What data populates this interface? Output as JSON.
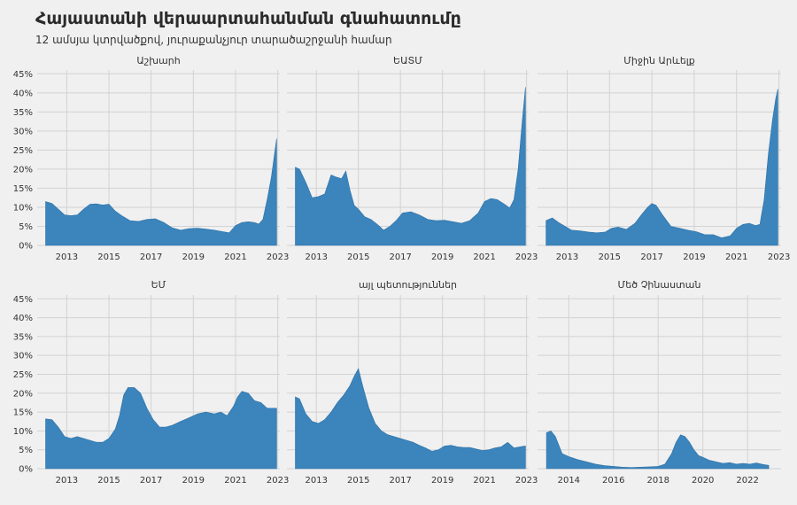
{
  "title": "Հայաստանի վերաարտահանման գնահատումը",
  "subtitle": "12 ամսյա կտրվածքով, յուրաքանչյուր տարածաշրջանի համար",
  "chart_data": {
    "type": "area",
    "y_tick_labels": [
      "0%",
      "5%",
      "10%",
      "15%",
      "20%",
      "25%",
      "30%",
      "35%",
      "40%",
      "45%"
    ],
    "ylim": [
      0,
      46
    ],
    "colors": {
      "area": "#3b84bc",
      "background": "#f0f0f0",
      "grid": "#d2d2d2"
    },
    "panels": [
      {
        "name": "Աշխարհ",
        "xlim": [
          2011.6,
          2023.1
        ],
        "x_ticks": [
          2013,
          2015,
          2017,
          2019,
          2021,
          2023
        ],
        "x": [
          2012.0,
          2012.3,
          2012.6,
          2012.9,
          2013.2,
          2013.5,
          2013.8,
          2014.1,
          2014.4,
          2014.7,
          2015.0,
          2015.3,
          2015.6,
          2016.0,
          2016.4,
          2016.8,
          2017.2,
          2017.6,
          2018.0,
          2018.4,
          2018.8,
          2019.2,
          2019.6,
          2020.0,
          2020.4,
          2020.7,
          2021.0,
          2021.3,
          2021.6,
          2021.9,
          2022.1,
          2022.3,
          2022.5,
          2022.7,
          2022.85,
          2022.95
        ],
        "y": [
          11.5,
          11.0,
          9.5,
          8.0,
          7.8,
          8.0,
          9.5,
          10.8,
          10.9,
          10.6,
          10.8,
          9.0,
          7.8,
          6.5,
          6.3,
          6.8,
          7.0,
          6.0,
          4.6,
          4.0,
          4.4,
          4.5,
          4.3,
          4.0,
          3.6,
          3.3,
          5.2,
          6.0,
          6.2,
          6.0,
          5.6,
          6.8,
          12.0,
          18.0,
          24.0,
          28.0
        ]
      },
      {
        "name": "ԵԱՏՄ",
        "xlim": [
          2011.6,
          2023.1
        ],
        "x_ticks": [
          2013,
          2015,
          2017,
          2019,
          2021,
          2023
        ],
        "x": [
          2012.0,
          2012.2,
          2012.5,
          2012.8,
          2013.1,
          2013.4,
          2013.7,
          2013.9,
          2014.2,
          2014.4,
          2014.6,
          2014.8,
          2015.0,
          2015.3,
          2015.6,
          2015.9,
          2016.2,
          2016.5,
          2016.8,
          2017.1,
          2017.5,
          2017.9,
          2018.3,
          2018.7,
          2019.1,
          2019.5,
          2019.9,
          2020.3,
          2020.7,
          2021.0,
          2021.3,
          2021.6,
          2021.9,
          2022.2,
          2022.4,
          2022.6,
          2022.8,
          2022.95
        ],
        "y": [
          20.5,
          20.0,
          16.5,
          12.5,
          12.8,
          13.5,
          18.5,
          18.0,
          17.5,
          19.5,
          14.5,
          10.5,
          9.5,
          7.5,
          6.8,
          5.5,
          4.0,
          5.0,
          6.5,
          8.5,
          8.8,
          8.0,
          6.8,
          6.5,
          6.6,
          6.2,
          5.8,
          6.5,
          8.5,
          11.5,
          12.3,
          12.0,
          11.0,
          9.8,
          12.0,
          20.0,
          33.0,
          41.5
        ]
      },
      {
        "name": "Միջին Արևելք",
        "xlim": [
          2011.6,
          2023.1
        ],
        "x_ticks": [
          2013,
          2015,
          2017,
          2019,
          2021,
          2023
        ],
        "x": [
          2012.0,
          2012.3,
          2012.6,
          2012.9,
          2013.2,
          2013.6,
          2014.0,
          2014.4,
          2014.8,
          2015.1,
          2015.4,
          2015.8,
          2016.2,
          2016.5,
          2016.8,
          2017.0,
          2017.2,
          2017.5,
          2017.9,
          2018.3,
          2018.7,
          2019.1,
          2019.5,
          2019.9,
          2020.3,
          2020.7,
          2021.0,
          2021.3,
          2021.6,
          2021.9,
          2022.1,
          2022.3,
          2022.5,
          2022.7,
          2022.85,
          2022.95
        ],
        "y": [
          6.5,
          7.2,
          6.0,
          5.0,
          4.0,
          3.8,
          3.5,
          3.3,
          3.5,
          4.5,
          4.8,
          4.2,
          5.8,
          8.0,
          10.0,
          11.0,
          10.5,
          8.0,
          5.0,
          4.5,
          4.0,
          3.6,
          2.8,
          2.8,
          2.0,
          2.5,
          4.5,
          5.5,
          5.8,
          5.2,
          5.5,
          12.0,
          24.0,
          33.0,
          38.5,
          41.0
        ]
      },
      {
        "name": "ԵՄ",
        "xlim": [
          2011.6,
          2023.1
        ],
        "x_ticks": [
          2013,
          2015,
          2017,
          2019,
          2021,
          2023
        ],
        "x": [
          2012.0,
          2012.3,
          2012.6,
          2012.9,
          2013.2,
          2013.5,
          2013.8,
          2014.1,
          2014.4,
          2014.7,
          2015.0,
          2015.3,
          2015.5,
          2015.7,
          2015.9,
          2016.2,
          2016.5,
          2016.8,
          2017.1,
          2017.4,
          2017.7,
          2018.0,
          2018.4,
          2018.8,
          2019.2,
          2019.6,
          2020.0,
          2020.3,
          2020.6,
          2020.9,
          2021.1,
          2021.3,
          2021.6,
          2021.9,
          2022.2,
          2022.5,
          2022.8,
          2022.95
        ],
        "y": [
          13.2,
          13.0,
          11.0,
          8.5,
          8.0,
          8.5,
          8.0,
          7.5,
          7.0,
          7.0,
          8.0,
          10.5,
          14.0,
          19.5,
          21.5,
          21.5,
          20.0,
          16.0,
          13.0,
          11.0,
          11.0,
          11.5,
          12.5,
          13.5,
          14.5,
          15.0,
          14.5,
          15.0,
          14.0,
          16.5,
          19.0,
          20.5,
          20.0,
          18.0,
          17.5,
          16.0,
          16.0,
          16.0
        ]
      },
      {
        "name": "այլ պետություններ",
        "xlim": [
          2011.6,
          2023.1
        ],
        "x_ticks": [
          2013,
          2015,
          2017,
          2019,
          2021,
          2023
        ],
        "x": [
          2012.0,
          2012.2,
          2012.5,
          2012.8,
          2013.1,
          2013.4,
          2013.7,
          2014.0,
          2014.3,
          2014.6,
          2014.8,
          2015.0,
          2015.2,
          2015.5,
          2015.8,
          2016.1,
          2016.4,
          2016.7,
          2017.0,
          2017.3,
          2017.6,
          2017.9,
          2018.2,
          2018.5,
          2018.8,
          2019.1,
          2019.4,
          2019.7,
          2020.0,
          2020.3,
          2020.6,
          2020.9,
          2021.2,
          2021.5,
          2021.8,
          2022.1,
          2022.4,
          2022.7,
          2022.95
        ],
        "y": [
          19.0,
          18.5,
          14.5,
          12.5,
          12.0,
          13.0,
          15.0,
          17.5,
          19.5,
          22.0,
          24.5,
          26.5,
          22.0,
          16.0,
          12.0,
          10.0,
          9.0,
          8.5,
          8.0,
          7.5,
          7.0,
          6.2,
          5.5,
          4.6,
          5.0,
          6.0,
          6.2,
          5.8,
          5.6,
          5.6,
          5.2,
          4.8,
          5.0,
          5.5,
          5.8,
          7.0,
          5.5,
          5.8,
          6.0
        ]
      },
      {
        "name": "Մեծ Չինաստան",
        "xlim": [
          2012.6,
          2023.5
        ],
        "x_ticks": [
          2014,
          2016,
          2018,
          2020,
          2022
        ],
        "x": [
          2013.0,
          2013.2,
          2013.4,
          2013.7,
          2014.0,
          2014.4,
          2014.8,
          2015.2,
          2015.6,
          2016.0,
          2016.4,
          2016.8,
          2017.2,
          2017.6,
          2018.0,
          2018.3,
          2018.6,
          2018.8,
          2019.0,
          2019.2,
          2019.4,
          2019.6,
          2019.8,
          2020.0,
          2020.3,
          2020.6,
          2020.9,
          2021.2,
          2021.5,
          2021.8,
          2022.1,
          2022.4,
          2022.7,
          2022.95
        ],
        "y": [
          9.5,
          10.0,
          8.5,
          4.0,
          3.2,
          2.4,
          1.8,
          1.2,
          0.8,
          0.6,
          0.4,
          0.3,
          0.4,
          0.5,
          0.6,
          1.2,
          4.0,
          7.0,
          9.0,
          8.5,
          7.0,
          5.0,
          3.5,
          3.0,
          2.2,
          1.8,
          1.4,
          1.6,
          1.2,
          1.4,
          1.2,
          1.5,
          1.1,
          0.9
        ]
      }
    ]
  }
}
